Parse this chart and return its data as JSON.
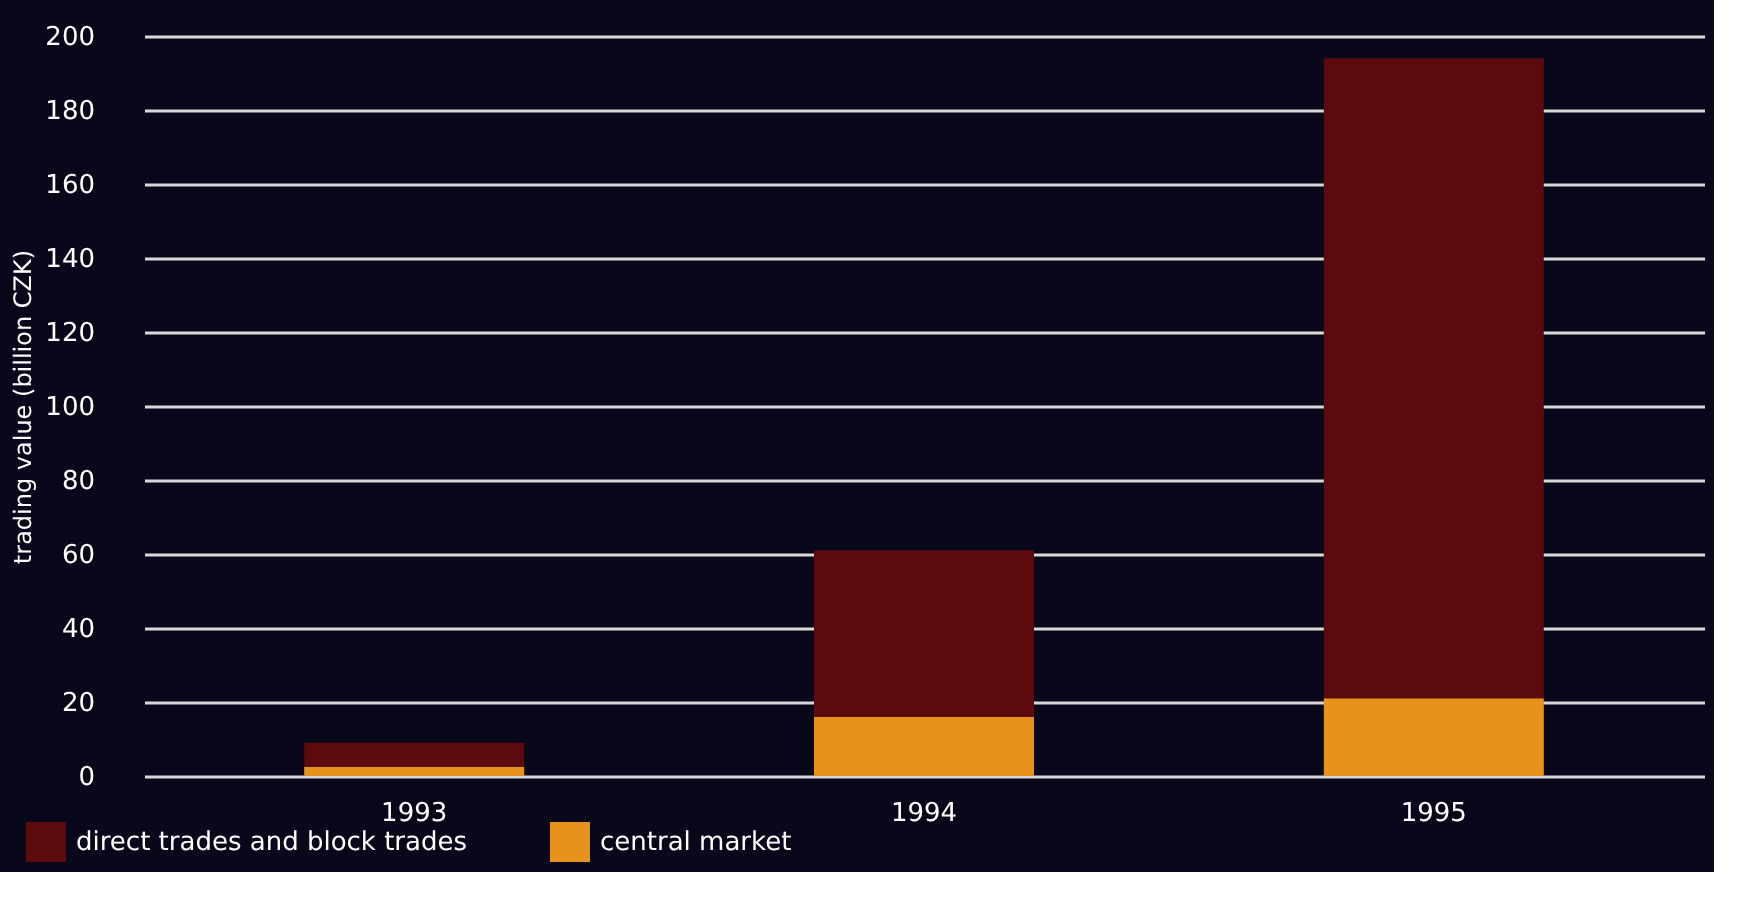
{
  "chart_data": {
    "type": "bar",
    "stacked": true,
    "ylabel": "trading value (billion CZK)",
    "categories": [
      "1993",
      "1994",
      "1995"
    ],
    "series": [
      {
        "name": "central market",
        "color": "#e8921e",
        "values": [
          2.5,
          16,
          21
        ]
      },
      {
        "name": "direct trades and block trades",
        "color": "#5c0a0e",
        "values": [
          6.5,
          45,
          173
        ]
      }
    ],
    "ylim": [
      0,
      200
    ],
    "yticks": [
      0,
      20,
      40,
      60,
      80,
      100,
      120,
      140,
      160,
      180,
      200
    ],
    "grid": "y",
    "legend": "bottom left"
  }
}
